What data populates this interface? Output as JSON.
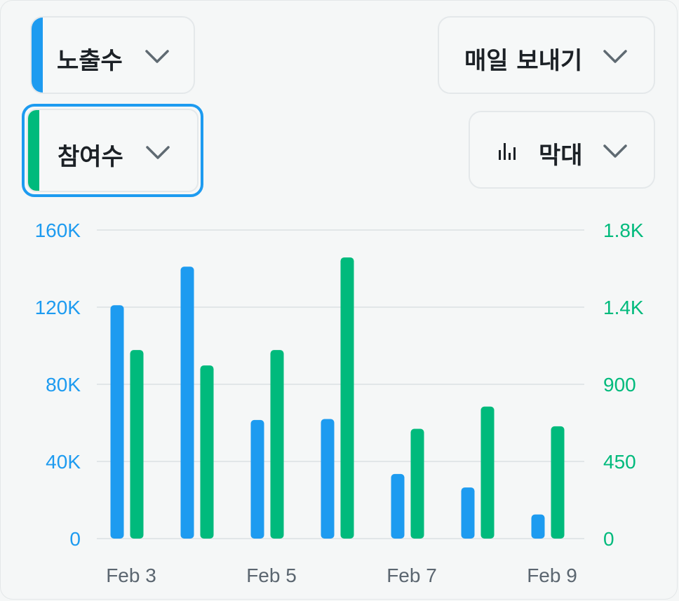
{
  "controls": {
    "metric_primary": {
      "label": "노출수",
      "color": "#1d9bf0"
    },
    "metric_secondary": {
      "label": "참여수",
      "color": "#00ba7c"
    },
    "export": {
      "label": "매일 보내기"
    },
    "chart_type": {
      "label": "막대",
      "icon": "bar-chart-icon"
    },
    "chevron_icon": "chevron-down-icon"
  },
  "colors": {
    "primary": "#1d9bf0",
    "secondary": "#00ba7c",
    "grid": "#e1e6e8",
    "xtick": "#5b6670"
  },
  "chart_data": {
    "type": "bar",
    "categories": [
      "Feb 3",
      "Feb 4",
      "Feb 5",
      "Feb 6",
      "Feb 7",
      "Feb 8",
      "Feb 9"
    ],
    "x_tick_labels": [
      "Feb 3",
      "Feb 5",
      "Feb 7",
      "Feb 9"
    ],
    "series": [
      {
        "name": "노출수",
        "axis": "left",
        "color": "#1d9bf0",
        "values": [
          121000,
          141000,
          61500,
          62000,
          33500,
          26500,
          12500
        ]
      },
      {
        "name": "참여수",
        "axis": "right",
        "color": "#00ba7c",
        "values": [
          1100,
          1010,
          1100,
          1640,
          640,
          770,
          655
        ]
      }
    ],
    "y_left": {
      "ticks": [
        "0",
        "40K",
        "80K",
        "120K",
        "160K"
      ],
      "ylim": [
        0,
        160000
      ]
    },
    "y_right": {
      "ticks": [
        "0",
        "450",
        "900",
        "1.4K",
        "1.8K"
      ],
      "ylim": [
        0,
        1800
      ]
    },
    "grid": true
  }
}
